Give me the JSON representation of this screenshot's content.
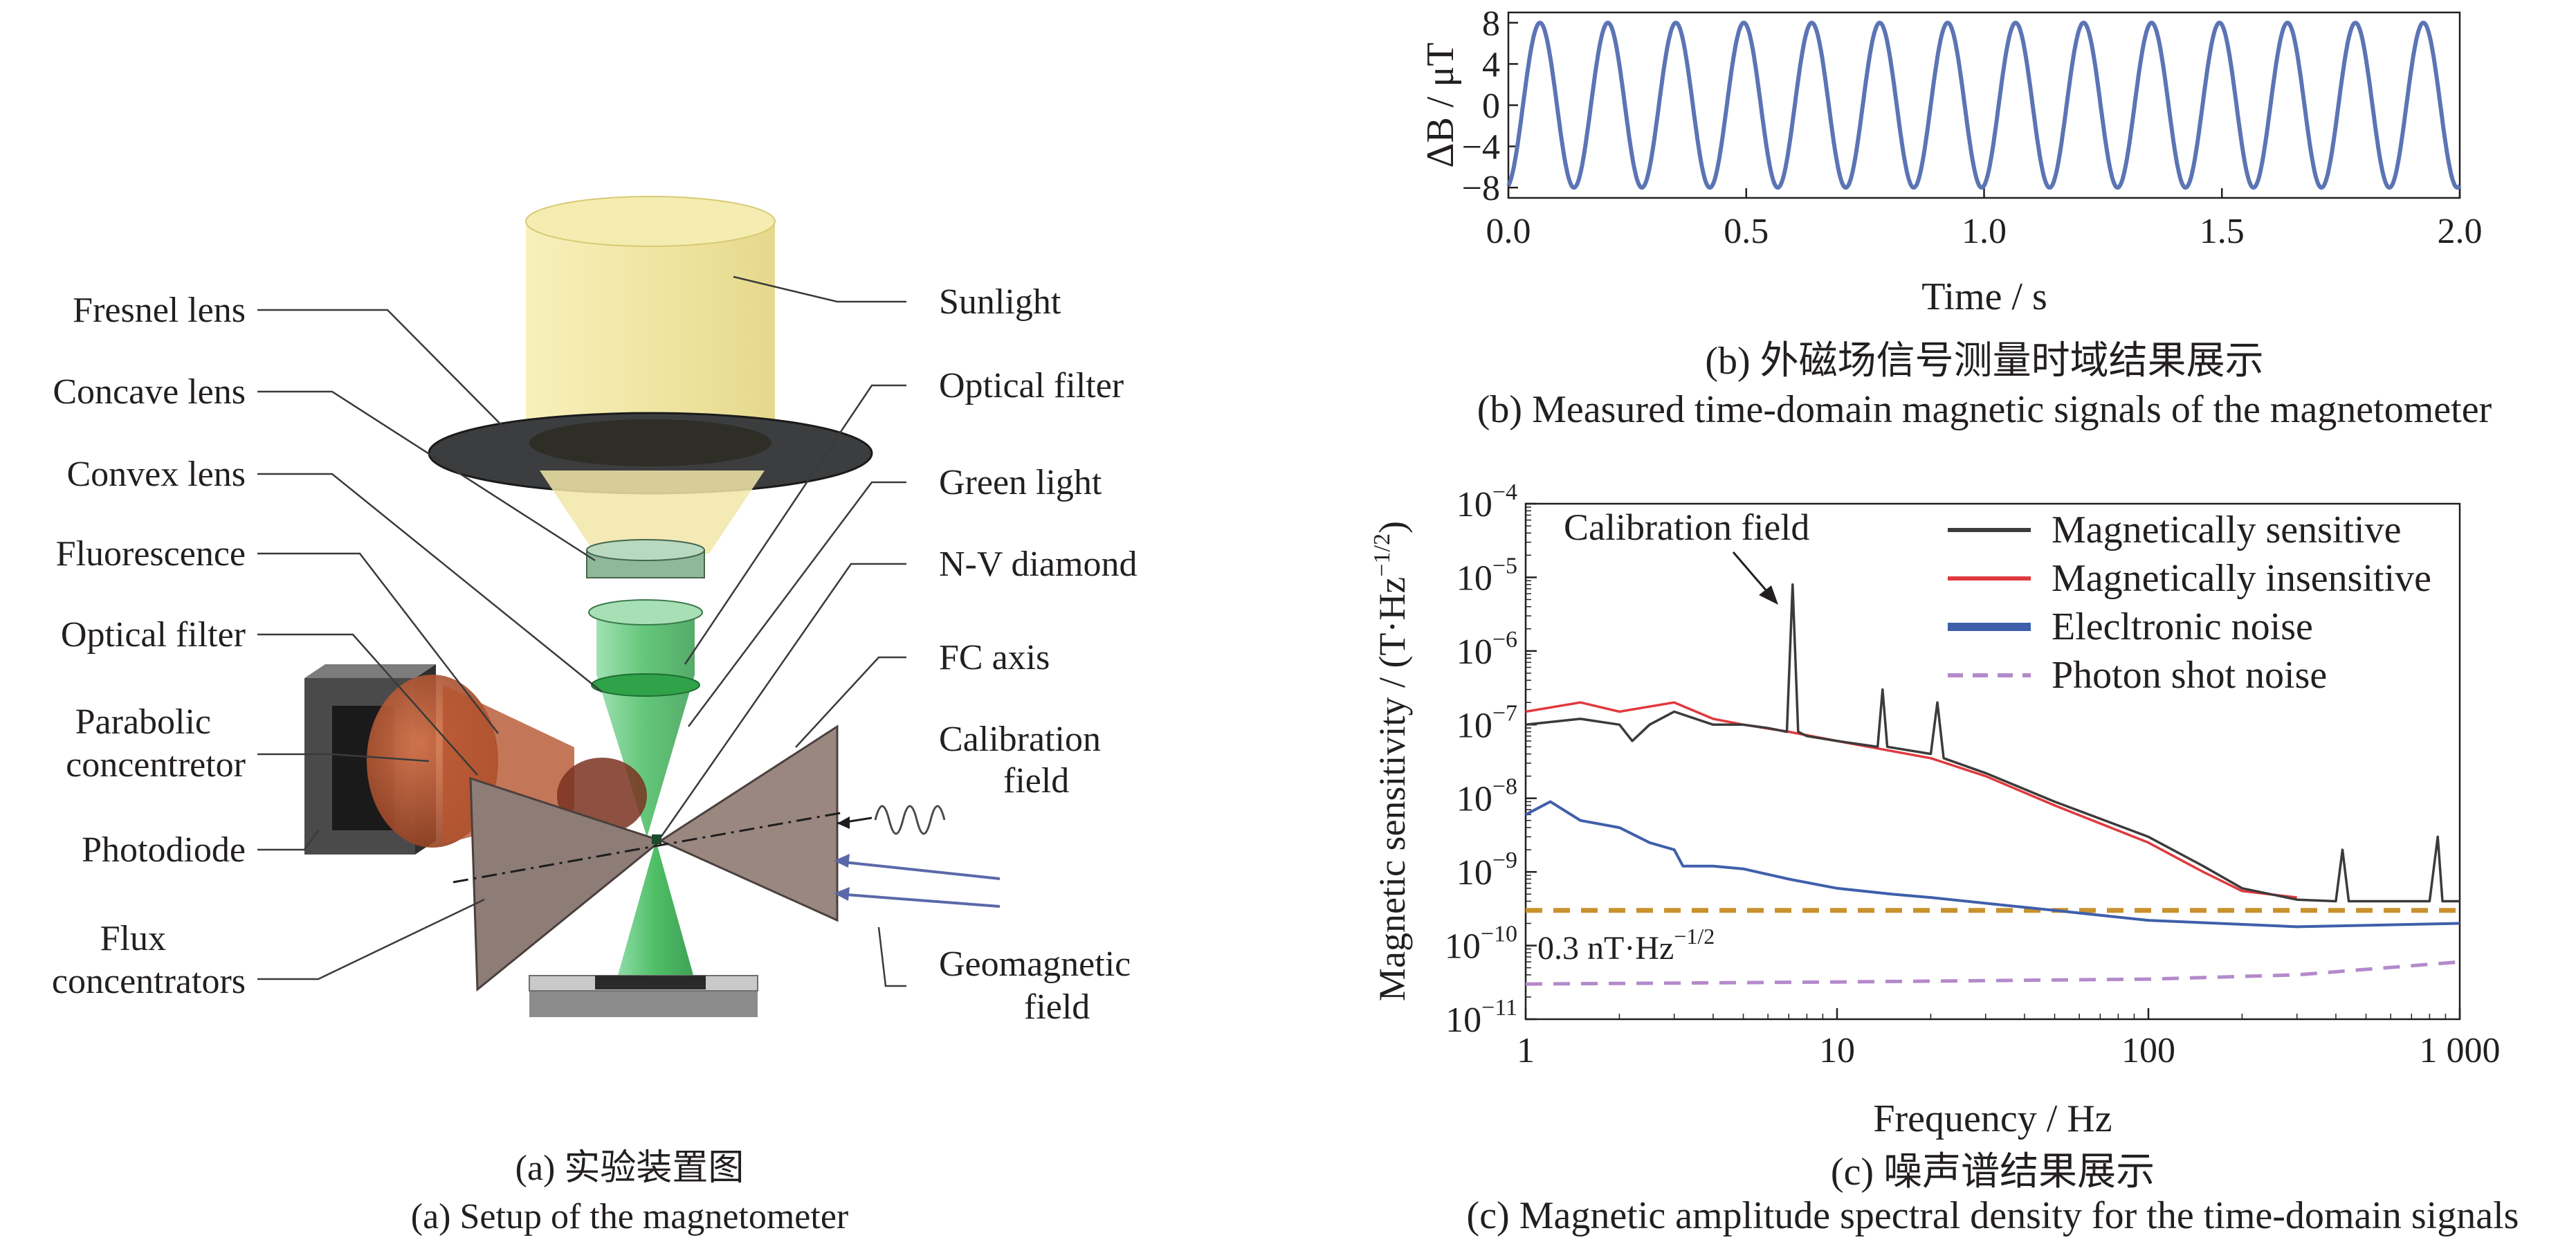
{
  "setup": {
    "labels_left": [
      "Fresnel lens",
      "Concave lens",
      "Convex lens",
      "Fluorescence",
      "Optical filter",
      "Parabolic",
      "concentretor",
      "Photodiode",
      "Flux",
      "concentrators"
    ],
    "labels_right": [
      "Sunlight",
      "Optical filter",
      "Green light",
      "N-V diamond",
      "FC axis",
      "Calibration",
      "field",
      "Geomagnetic",
      "field"
    ],
    "caption_cn": "(a) 实验装置图",
    "caption_en": "(a) Setup of the magnetometer"
  },
  "colors": {
    "sine": "#5b74b4",
    "sensitive": "#3d3a3a",
    "insensitive": "#e0393e",
    "electronic": "#3f5fab",
    "photon": "#b48acb",
    "limit": "#c9922e",
    "green": "#33b54a",
    "sun": "#efe8a0"
  },
  "chart_data": [
    {
      "type": "line",
      "title": "",
      "xlabel": "Time / s",
      "ylabel": "ΔB / μT",
      "xlim": [
        0.0,
        2.0
      ],
      "ylim": [
        -9,
        9
      ],
      "xticks": [
        "0.0",
        "0.5",
        "1.0",
        "1.5",
        "2.0"
      ],
      "yticks": [
        "8",
        "4",
        "0",
        "−4",
        "−8"
      ],
      "series": [
        {
          "amplitude_uT": 8,
          "frequency_hz": 7,
          "phase_rad": -1.35,
          "x_start": 0.0,
          "x_end": 2.0
        }
      ],
      "caption_cn": "(b) 外磁场信号测量时域结果展示",
      "caption_en": "(b) Measured time-domain magnetic signals of the magnetometer"
    },
    {
      "type": "line",
      "xscale": "log",
      "yscale": "log",
      "xlabel": "Frequency / Hz",
      "ylabel": "Magnetic sensitivity / (T·Hz",
      "ylabel_sup": "−1/2",
      "ylabel_tail": ")",
      "xlim": [
        1,
        1000
      ],
      "ylim": [
        1e-11,
        0.0001
      ],
      "xticks": [
        "1",
        "10",
        "100",
        "1 000"
      ],
      "yticks": [
        {
          "base": "10",
          "exp": "−11"
        },
        {
          "base": "10",
          "exp": "−10"
        },
        {
          "base": "10",
          "exp": "−9"
        },
        {
          "base": "10",
          "exp": "−8"
        },
        {
          "base": "10",
          "exp": "−7"
        },
        {
          "base": "10",
          "exp": "−6"
        },
        {
          "base": "10",
          "exp": "−5"
        },
        {
          "base": "10",
          "exp": "−4"
        }
      ],
      "legend": [
        "Magnetically sensitive",
        "Magnetically insensitive",
        "Elecltronic noise",
        "Photon shot noise"
      ],
      "legend_position": "top-right",
      "series": [
        {
          "name": "Magnetically sensitive",
          "points": [
            [
              1,
              1e-07
            ],
            [
              1.5,
              1.2e-07
            ],
            [
              2,
              1e-07
            ],
            [
              2.2,
              6e-08
            ],
            [
              2.5,
              1e-07
            ],
            [
              3,
              1.5e-07
            ],
            [
              4,
              1e-07
            ],
            [
              5,
              1e-07
            ],
            [
              6,
              9e-08
            ],
            [
              6.9,
              8e-08
            ],
            [
              7.2,
              8e-06
            ],
            [
              7.5,
              8e-08
            ],
            [
              8,
              7e-08
            ],
            [
              10,
              6e-08
            ],
            [
              13.5,
              5e-08
            ],
            [
              14,
              3e-07
            ],
            [
              14.5,
              5e-08
            ],
            [
              20,
              4e-08
            ],
            [
              21,
              2e-07
            ],
            [
              22,
              3.5e-08
            ],
            [
              30,
              2.2e-08
            ],
            [
              50,
              9e-09
            ],
            [
              100,
              3e-09
            ],
            [
              150,
              1.2e-09
            ],
            [
              200,
              6e-10
            ],
            [
              300,
              4.2e-10
            ],
            [
              400,
              4e-10
            ],
            [
              420,
              2e-09
            ],
            [
              440,
              4e-10
            ],
            [
              600,
              4e-10
            ],
            [
              800,
              4e-10
            ],
            [
              850,
              3e-09
            ],
            [
              880,
              4e-10
            ],
            [
              1000,
              4e-10
            ]
          ]
        },
        {
          "name": "Magnetically insensitive",
          "points": [
            [
              1,
              1.5e-07
            ],
            [
              1.5,
              2e-07
            ],
            [
              2,
              1.5e-07
            ],
            [
              3,
              2e-07
            ],
            [
              4,
              1.2e-07
            ],
            [
              5,
              1e-07
            ],
            [
              7,
              8e-08
            ],
            [
              10,
              6e-08
            ],
            [
              20,
              3.5e-08
            ],
            [
              30,
              2e-08
            ],
            [
              50,
              8e-09
            ],
            [
              100,
              2.5e-09
            ],
            [
              150,
              1e-09
            ],
            [
              200,
              5.5e-10
            ],
            [
              300,
              4.5e-10
            ]
          ]
        },
        {
          "name": "Elecltronic noise",
          "points": [
            [
              1,
              6e-09
            ],
            [
              1.2,
              9e-09
            ],
            [
              1.5,
              5e-09
            ],
            [
              2,
              4e-09
            ],
            [
              2.5,
              2.5e-09
            ],
            [
              3,
              2e-09
            ],
            [
              3.2,
              1.2e-09
            ],
            [
              4,
              1.2e-09
            ],
            [
              5,
              1.1e-09
            ],
            [
              7,
              8e-10
            ],
            [
              10,
              6e-10
            ],
            [
              15,
              5e-10
            ],
            [
              20,
              4.5e-10
            ],
            [
              50,
              3e-10
            ],
            [
              100,
              2.2e-10
            ],
            [
              300,
              1.8e-10
            ],
            [
              1000,
              2e-10
            ]
          ]
        },
        {
          "name": "Photon shot noise",
          "style": "dashed",
          "points": [
            [
              1,
              3e-11
            ],
            [
              10,
              3.2e-11
            ],
            [
              100,
              3.5e-11
            ],
            [
              300,
              4e-11
            ],
            [
              1000,
              6e-11
            ]
          ]
        },
        {
          "name": "",
          "style": "dashed",
          "points": [
            [
              1,
              3e-10
            ],
            [
              1000,
              3e-10
            ]
          ]
        }
      ],
      "annotations": {
        "calibration": "Calibration field",
        "limit": "0.3 nT·Hz",
        "limit_sup": "−1/2"
      },
      "caption_cn": "(c) 噪声谱结果展示",
      "caption_en": "(c) Magnetic amplitude spectral density for the time-domain signals"
    }
  ]
}
